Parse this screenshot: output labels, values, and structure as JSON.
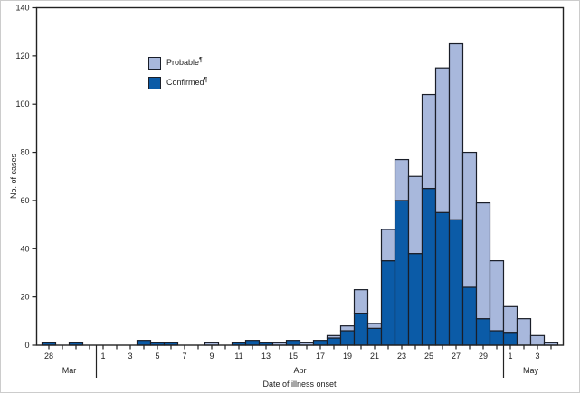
{
  "figure": {
    "ylabel": "No. of cases",
    "xlabel": "Date of illness onset"
  },
  "legend": {
    "probable_label": "Probable",
    "probable_sup": "¶",
    "confirmed_label": "Confirmed",
    "confirmed_sup": "¶"
  },
  "chart_data": {
    "type": "bar",
    "stacked": true,
    "title": "",
    "xlabel": "Date of illness onset",
    "ylabel": "No. of cases",
    "ylim": [
      0,
      140
    ],
    "yticks": [
      0,
      20,
      40,
      60,
      80,
      100,
      120,
      140
    ],
    "grid": false,
    "legend_position": "upper-left-inside",
    "categories": [
      "Mar 28",
      "Mar 29",
      "Mar 30",
      "Mar 31",
      "Apr 1",
      "Apr 2",
      "Apr 3",
      "Apr 4",
      "Apr 5",
      "Apr 6",
      "Apr 7",
      "Apr 8",
      "Apr 9",
      "Apr 10",
      "Apr 11",
      "Apr 12",
      "Apr 13",
      "Apr 14",
      "Apr 15",
      "Apr 16",
      "Apr 17",
      "Apr 18",
      "Apr 19",
      "Apr 20",
      "Apr 21",
      "Apr 22",
      "Apr 23",
      "Apr 24",
      "Apr 25",
      "Apr 26",
      "Apr 27",
      "Apr 28",
      "Apr 29",
      "Apr 30",
      "May 1",
      "May 2",
      "May 3",
      "May 4"
    ],
    "x_tick_labels": [
      "28",
      "",
      "",
      "",
      "1",
      "",
      "3",
      "",
      "5",
      "",
      "7",
      "",
      "9",
      "",
      "11",
      "",
      "13",
      "",
      "15",
      "",
      "17",
      "",
      "19",
      "",
      "21",
      "",
      "23",
      "",
      "25",
      "",
      "27",
      "",
      "29",
      "",
      "1",
      "",
      "3",
      ""
    ],
    "months": [
      {
        "name": "Mar",
        "from": 0,
        "to": 3
      },
      {
        "name": "Apr",
        "from": 4,
        "to": 33
      },
      {
        "name": "May",
        "from": 34,
        "to": 37
      }
    ],
    "series": [
      {
        "name": "Confirmed",
        "sup": "¶",
        "color": "#0b5ba7",
        "values": [
          1,
          0,
          1,
          0,
          0,
          0,
          0,
          2,
          1,
          1,
          0,
          0,
          0,
          0,
          1,
          2,
          1,
          0,
          2,
          0,
          2,
          3,
          6,
          13,
          7,
          35,
          60,
          38,
          65,
          55,
          52,
          24,
          11,
          6,
          5,
          0,
          0,
          0
        ]
      },
      {
        "name": "Probable",
        "sup": "¶",
        "color": "#a8b8dc",
        "values": [
          0,
          0,
          0,
          0,
          0,
          0,
          0,
          0,
          0,
          0,
          0,
          0,
          1,
          0,
          0,
          0,
          0,
          1,
          0,
          1,
          0,
          1,
          2,
          10,
          2,
          13,
          17,
          32,
          39,
          60,
          73,
          56,
          48,
          29,
          11,
          11,
          4,
          1
        ]
      }
    ],
    "bar_outline_color": "#1a1e28",
    "axis_color": "#222222"
  }
}
